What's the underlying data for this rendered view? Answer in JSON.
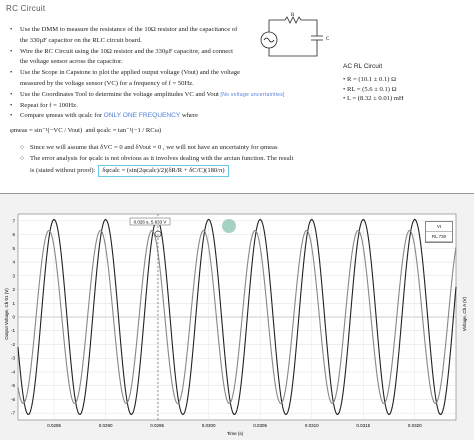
{
  "document": {
    "title": "RC Circuit",
    "bullets": [
      "Use the DMM to measure the resistance of the 10Ω resistor and the capacitance of",
      "the 330μF capacitor on the RLC circuit board.",
      "Wire the RC Circuit using the 10Ω resistor and the 330μF capacitor, and connect",
      "the voltage sensor across the capacitor.",
      "Use the Scope in Capstone to plot the applied output voltage (V",
      "measured by the voltage sensor (V",
      "Use the Coordinates Tool to determine the voltage amplitudes V",
      "Repeat for f = 100Hz.",
      "Compare φ",
      "with φ",
      "for",
      "where"
    ],
    "line_scope": "Use the Scope in Capstone to plot the applied output voltage (Vout) and the voltage",
    "line_measured": "measured by the voltage sensor (VC) for a frequency of f = 50Hz.",
    "line_coords_a": "Use the Coordinates Tool to determine the voltage amplitudes VC and Vout",
    "line_coords_note": "[No voltage uncertainties]",
    "line_repeat": "Repeat for f = 100Hz.",
    "line_compare_a": "Compare φmeas with φcalc for",
    "line_compare_note": "ONLY ONE FREQUENCY",
    "line_compare_b": "where",
    "formula_meas": "φmeas = sin⁻¹(−VC / Vout)",
    "formula_calc": "and φcalc = tan⁻¹(−1 / RCω)",
    "sub1": "Since we will assume that δVC = 0 and δVout = 0 , we will not have an uncertainty for φmeas",
    "sub2": "The error analysis for φcalc is not obvious as it involves dealing with the arctan function. The result",
    "sub3_a": "is (stated without proof):",
    "sub3_formula": "δφcalc = (sin(2φcalc)/2)(δR/R + δC/C)(180/π)"
  },
  "circuit": {
    "r_label": "R",
    "c_label": "C"
  },
  "ac_rl": {
    "title": "AC RL Circuit",
    "items": [
      "R = (10.1 ± 0.1) Ω",
      "RL = (5.6 ± 0.1) Ω",
      "L = (8.32 ± 0.01) mH"
    ]
  },
  "scope": {
    "coord_readout": "0.026 s, 5.833 V",
    "y_label_left": "Output Voltage, Ch 01 (V)",
    "y_label_right": "Voltage, Ch A (V)",
    "x_label": "Time (s)",
    "x_ticks": [
      "0.0285",
      "0.0290",
      "0.0295",
      "0.0300",
      "0.0305",
      "0.0310",
      "0.0315",
      "0.0320"
    ],
    "y_ticks": [
      "7",
      "6",
      "5",
      "4",
      "3",
      "2",
      "1",
      "0",
      "-1",
      "-2",
      "-3",
      "-4",
      "-5",
      "-6",
      "-7"
    ],
    "controls": [
      "Vt",
      "RL 730",
      "Vi"
    ]
  },
  "chart_data": {
    "type": "line",
    "xlabel": "Time (s)",
    "ylabel": "Output Voltage, Ch 01 (V)",
    "xlim": [
      0.02815,
      0.0324
    ],
    "ylim": [
      -7.5,
      7.5
    ],
    "series": [
      {
        "name": "",
        "color": "#222222",
        "amplitude": 7.1,
        "period_s": 0.0005,
        "peak_time_s": 0.0295
      },
      {
        "name": "",
        "color": "#888888",
        "amplitude": 6.3,
        "period_s": 0.0005,
        "peak_time_s": 0.02945
      }
    ],
    "grid": true
  }
}
